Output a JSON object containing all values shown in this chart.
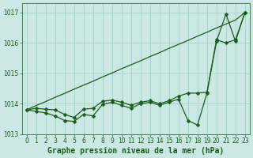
{
  "title": "Graphe pression niveau de la mer (hPa)",
  "bg_color": "#cce8e4",
  "grid_color": "#aad4ce",
  "line_color": "#1a5c1a",
  "x_values": [
    0,
    1,
    2,
    3,
    4,
    5,
    6,
    7,
    8,
    9,
    10,
    11,
    12,
    13,
    14,
    15,
    16,
    17,
    18,
    19,
    20,
    21,
    22,
    23
  ],
  "y_straight": [
    1013.8,
    1013.94,
    1014.07,
    1014.21,
    1014.34,
    1014.48,
    1014.61,
    1014.74,
    1014.88,
    1015.01,
    1015.15,
    1015.28,
    1015.41,
    1015.55,
    1015.68,
    1015.82,
    1015.95,
    1016.08,
    1016.22,
    1016.35,
    1016.49,
    1016.62,
    1016.75,
    1017.0
  ],
  "y_mid": [
    1013.8,
    1013.85,
    1013.82,
    1013.8,
    1013.65,
    1013.55,
    1013.82,
    1013.85,
    1014.08,
    1014.12,
    1014.05,
    1013.95,
    1014.05,
    1014.1,
    1014.0,
    1014.1,
    1014.25,
    1014.35,
    1014.35,
    1014.38,
    1016.1,
    1016.0,
    1016.1,
    1017.0
  ],
  "y_data": [
    1013.8,
    1013.75,
    1013.7,
    1013.6,
    1013.45,
    1013.42,
    1013.65,
    1013.6,
    1013.98,
    1014.05,
    1013.95,
    1013.85,
    1014.0,
    1014.05,
    1013.95,
    1014.05,
    1014.15,
    1013.45,
    1013.3,
    1014.35,
    1016.05,
    1016.95,
    1016.05,
    1017.0
  ],
  "ylim": [
    1013.0,
    1017.3
  ],
  "yticks": [
    1013,
    1014,
    1015,
    1016,
    1017
  ],
  "xlim": [
    -0.5,
    23.5
  ],
  "title_fontsize": 7,
  "tick_fontsize": 5.5,
  "marker_size": 2.5,
  "line_width": 0.9
}
